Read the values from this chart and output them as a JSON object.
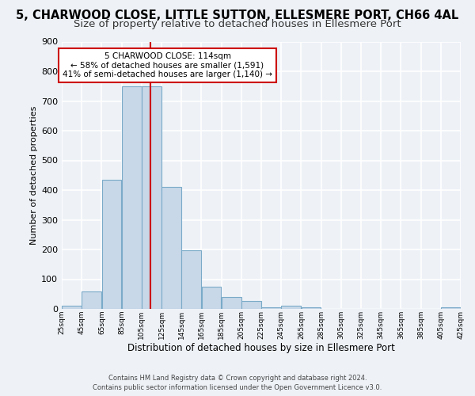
{
  "title": "5, CHARWOOD CLOSE, LITTLE SUTTON, ELLESMERE PORT, CH66 4AL",
  "subtitle": "Size of property relative to detached houses in Ellesmere Port",
  "xlabel": "Distribution of detached houses by size in Ellesmere Port",
  "ylabel": "Number of detached properties",
  "bins": [
    25,
    45,
    65,
    85,
    105,
    125,
    145,
    165,
    185,
    205,
    225,
    245,
    265,
    285,
    305,
    325,
    345,
    365,
    385,
    405,
    425
  ],
  "bar_heights": [
    10,
    60,
    435,
    750,
    750,
    410,
    197,
    75,
    40,
    27,
    5,
    10,
    5,
    0,
    0,
    0,
    0,
    0,
    0,
    5
  ],
  "bar_color": "#c8d8e8",
  "bar_edgecolor": "#7aaac8",
  "bar_linewidth": 0.8,
  "vline_x": 114,
  "vline_color": "#cc0000",
  "vline_linewidth": 1.5,
  "ylim": [
    0,
    900
  ],
  "yticks": [
    0,
    100,
    200,
    300,
    400,
    500,
    600,
    700,
    800,
    900
  ],
  "annotation_title": "5 CHARWOOD CLOSE: 114sqm",
  "annotation_line1": "← 58% of detached houses are smaller (1,591)",
  "annotation_line2": "41% of semi-detached houses are larger (1,140) →",
  "annotation_box_color": "#ffffff",
  "annotation_box_edgecolor": "#cc0000",
  "footer_line1": "Contains HM Land Registry data © Crown copyright and database right 2024.",
  "footer_line2": "Contains public sector information licensed under the Open Government Licence v3.0.",
  "bg_color": "#eef2f7",
  "grid_color": "#ffffff",
  "title_fontsize": 10.5,
  "subtitle_fontsize": 9.5
}
